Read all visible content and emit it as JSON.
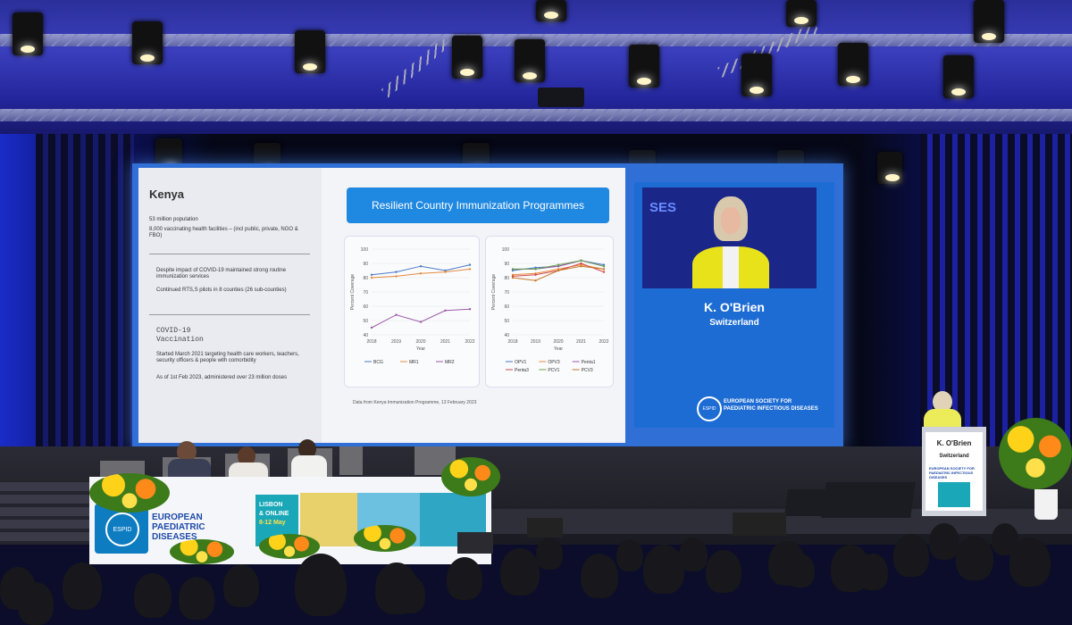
{
  "slide": {
    "country": "Kenya",
    "bullets_top": [
      "53 million population",
      "8,000 vaccinating health facilities – (incl public, private, NGO & FBO)"
    ],
    "bullets_mid": [
      "Despite impact of COVID-19 maintained strong routine immunization services",
      "Continued RTS,S pilots in 8 counties (26 sub-counties)"
    ],
    "covid_heading": "COVID-19 Vaccination",
    "bullets_covid": [
      "Started March 2021 targeting health care workers, teachers, security officers & people with comorbidity",
      "As of 1st Feb 2023, administered over 23 million doses"
    ],
    "banner": "Resilient Country Immunization Programmes",
    "source": "Data from Kenya Immunization Programme, 13 February 2023",
    "chart1": {
      "ylabel": "Percent Coverage",
      "xlabel": "Year",
      "x": [
        "2018",
        "2019",
        "2020",
        "2021",
        "2022"
      ],
      "yticks": [
        "100",
        "90",
        "80",
        "70",
        "60",
        "50",
        "40"
      ],
      "legend": [
        "BCG",
        "MR1",
        "MR2"
      ]
    },
    "chart2": {
      "ylabel": "Percent Coverage",
      "xlabel": "Year",
      "x": [
        "2018",
        "2019",
        "2020",
        "2021",
        "2022"
      ],
      "yticks": [
        "100",
        "90",
        "80",
        "70",
        "60",
        "50",
        "40"
      ],
      "legend": [
        "OPV1",
        "OPV3",
        "Penta1",
        "Penta3",
        "PCV1",
        "PCV3"
      ]
    }
  },
  "speaker": {
    "video_text": "SES",
    "name": "K. O'Brien",
    "country": "Switzerland",
    "org_line1": "EUROPEAN SOCIETY FOR",
    "org_line2": "PAEDIATRIC INFECTIOUS DISEASES",
    "logo": "ESPID"
  },
  "podium": {
    "name": "K. O'Brien",
    "country": "Switzerland",
    "org": "EUROPEAN SOCIETY FOR PAEDIATRIC INFECTIOUS DISEASES"
  },
  "table_banner": {
    "logo": "ESPID",
    "line1": "EUROPEAN",
    "line2": "PAEDIATRIC",
    "line3": "DISEASES",
    "city": "LISBON",
    "mode": "& ONLINE",
    "dates": "8-12 May"
  },
  "colors": {
    "screen_blue": "#2f6fd6",
    "banner_blue": "#1f88e0",
    "speaker_jacket": "#e8e21a"
  },
  "chart_data": [
    {
      "type": "line",
      "x": [
        2018,
        2019,
        2020,
        2021,
        2022
      ],
      "ylim": [
        40,
        100
      ],
      "xlabel": "Year",
      "ylabel": "Percent Coverage",
      "series": [
        {
          "name": "BCG",
          "values": [
            82,
            84,
            88,
            85,
            89
          ]
        },
        {
          "name": "MR1",
          "values": [
            80,
            81,
            83,
            84,
            86
          ]
        },
        {
          "name": "MR2",
          "values": [
            45,
            54,
            49,
            57,
            58
          ]
        }
      ]
    },
    {
      "type": "line",
      "x": [
        2018,
        2019,
        2020,
        2021,
        2022
      ],
      "ylim": [
        40,
        100
      ],
      "xlabel": "Year",
      "ylabel": "Percent Coverage",
      "series": [
        {
          "name": "OPV1",
          "values": [
            85,
            87,
            88,
            92,
            89
          ]
        },
        {
          "name": "OPV3",
          "values": [
            82,
            83,
            86,
            89,
            86
          ]
        },
        {
          "name": "Penta1",
          "values": [
            86,
            86,
            88,
            92,
            88
          ]
        },
        {
          "name": "Penta3",
          "values": [
            81,
            82,
            85,
            90,
            84
          ]
        },
        {
          "name": "PCV1",
          "values": [
            86,
            86,
            89,
            92,
            88
          ]
        },
        {
          "name": "PCV3",
          "values": [
            80,
            78,
            85,
            88,
            86
          ]
        }
      ]
    }
  ]
}
